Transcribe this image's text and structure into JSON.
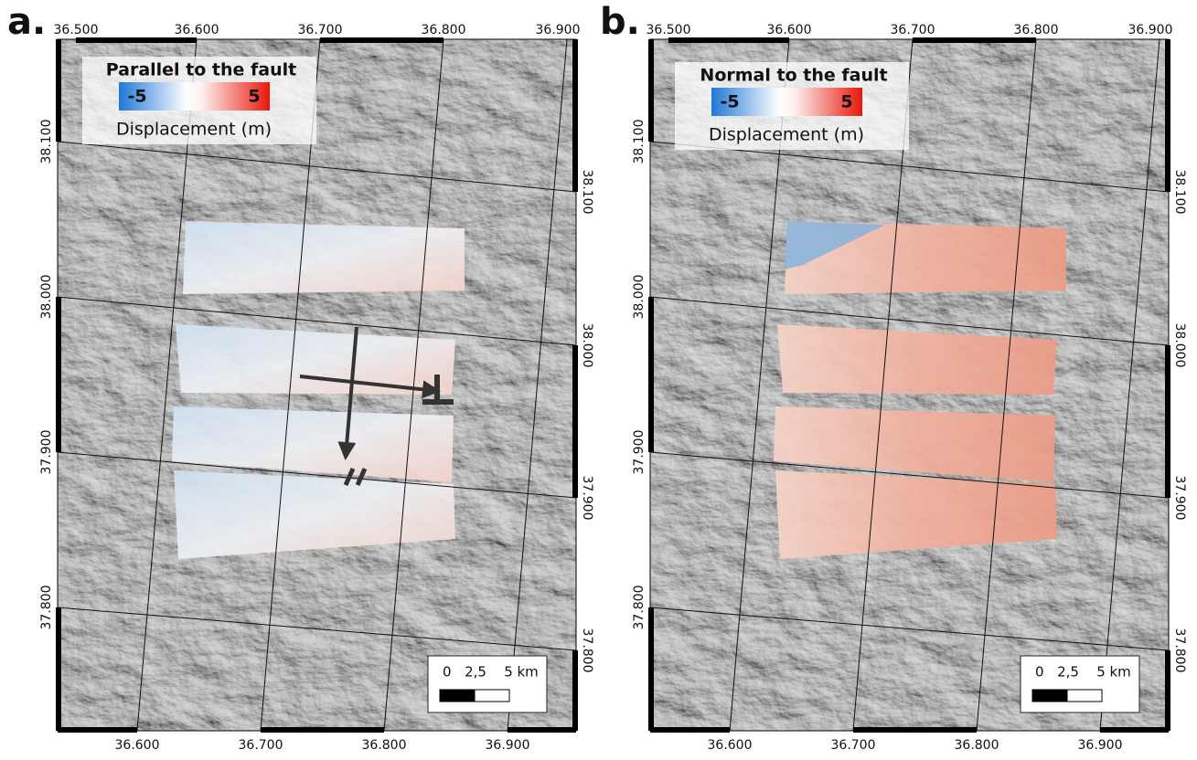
{
  "panels": [
    {
      "label": "a.",
      "legend": {
        "title": "Parallel to the fault",
        "min": "-5",
        "max": "5",
        "label": "Displacement (m)"
      },
      "top_ticks": [
        "36.500",
        "36.600",
        "36.700",
        "36.800",
        "36.900"
      ],
      "bottom_ticks": [
        "36.600",
        "36.700",
        "36.800",
        "36.900"
      ],
      "left_ticks": [
        "38.100",
        "38.000",
        "37.900",
        "37.800"
      ],
      "right_ticks": [
        "38.100",
        "38.000",
        "37.900",
        "37.800"
      ],
      "scale_bar": [
        "0",
        "2,5",
        "5 km"
      ]
    },
    {
      "label": "b.",
      "legend": {
        "title": "Normal to the fault",
        "min": "-5",
        "max": "5",
        "label": "Displacement (m)"
      },
      "top_ticks": [
        "36.500",
        "36.600",
        "36.700",
        "36.800",
        "36.900"
      ],
      "bottom_ticks": [
        "36.600",
        "36.700",
        "36.800",
        "36.900"
      ],
      "left_ticks": [
        "38.100",
        "38.000",
        "37.900",
        "37.800"
      ],
      "right_ticks": [
        "38.100",
        "38.000",
        "37.900",
        "37.800"
      ],
      "scale_bar": [
        "0",
        "2,5",
        "5 km"
      ]
    }
  ]
}
